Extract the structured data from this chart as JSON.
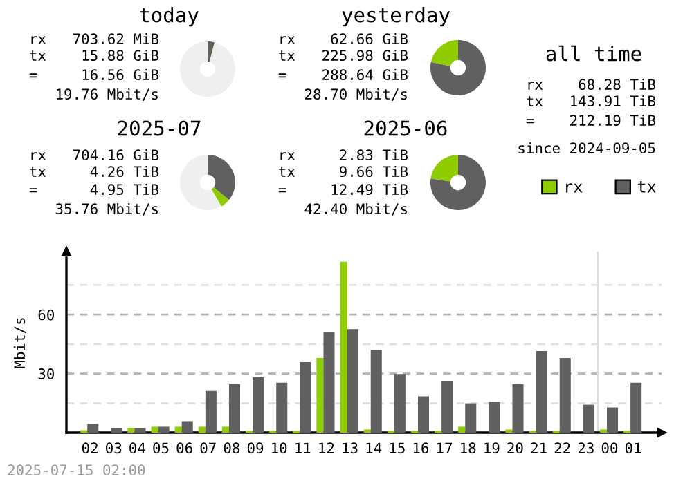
{
  "chart_data": [
    {
      "type": "donut",
      "title": "today",
      "categories": [
        null,
        null,
        null
      ],
      "values": [
        4.0,
        0.2,
        95.8
      ],
      "colors": [
        "#606060",
        "#8fcc00",
        "#efefef"
      ],
      "annotations": [
        "rx   703.62 MiB",
        "tx    15.88 GiB",
        "=     16.56 GiB",
        "19.76 Mbit/s"
      ]
    },
    {
      "type": "donut",
      "title": "yesterday",
      "categories": [
        null,
        null
      ],
      "values": [
        78.3,
        21.7
      ],
      "colors": [
        "#606060",
        "#8fcc00"
      ],
      "annotations": [
        "rx    62.66 GiB",
        "tx   225.98 GiB",
        "=    288.64 GiB",
        "28.70 Mbit/s"
      ]
    },
    {
      "type": "other",
      "title": "all time",
      "annotations": [
        "rx    68.28 TiB",
        "tx   143.91 TiB",
        "=    212.19 TiB",
        "since 2024-09-05"
      ]
    },
    {
      "type": "donut",
      "title": "2025-07",
      "categories": [
        null,
        null,
        null
      ],
      "values": [
        35.9,
        5.8,
        58.3
      ],
      "colors": [
        "#606060",
        "#8fcc00",
        "#efefef"
      ],
      "annotations": [
        "rx   704.16 GiB",
        "tx     4.26 TiB",
        "=      4.95 TiB",
        "35.76 Mbit/s"
      ]
    },
    {
      "type": "donut",
      "title": "2025-06",
      "categories": [
        null,
        null
      ],
      "values": [
        77.3,
        22.7
      ],
      "colors": [
        "#606060",
        "#8fcc00"
      ],
      "annotations": [
        "rx     2.83 TiB",
        "tx     9.66 TiB",
        "=     12.49 TiB",
        "42.40 Mbit/s"
      ]
    },
    {
      "type": "bar",
      "ylabel": "Mbit/s",
      "categories": [
        "02",
        "03",
        "04",
        "05",
        "06",
        "07",
        "08",
        "09",
        "10",
        "11",
        "12",
        "13",
        "14",
        "15",
        "16",
        "17",
        "18",
        "19",
        "20",
        "21",
        "22",
        "23",
        "00",
        "01"
      ],
      "series": [
        {
          "name": "rx",
          "color": "#8fcc00",
          "values": [
            1.2,
            0,
            2.3,
            3.0,
            3.0,
            3.0,
            3.0,
            0.9,
            0.9,
            0.9,
            37.9,
            86.8,
            1.6,
            0.9,
            0.9,
            0.9,
            3.0,
            0,
            1.6,
            0.9,
            0.9,
            0,
            1.6,
            0.9
          ]
        },
        {
          "name": "tx",
          "color": "#606060",
          "values": [
            4.4,
            2.3,
            2.3,
            3.0,
            5.8,
            21.2,
            24.7,
            28.1,
            25.4,
            35.8,
            51.2,
            52.6,
            42.1,
            29.8,
            18.4,
            26.0,
            14.9,
            15.6,
            24.7,
            41.4,
            37.9,
            14.2,
            12.8,
            25.4
          ]
        }
      ],
      "ylim": [
        0,
        92
      ],
      "yticks": [
        {
          "value": 15,
          "label": null
        },
        30,
        {
          "value": 45,
          "label": null
        },
        60,
        {
          "value": 75,
          "label": null
        }
      ],
      "grid": "y",
      "legend": "top right",
      "ref_lines": [
        {
          "axis": "x",
          "value": "00",
          "color": "#dddddd"
        }
      ],
      "annotations": [
        "2025-07-15 02:00"
      ]
    }
  ]
}
